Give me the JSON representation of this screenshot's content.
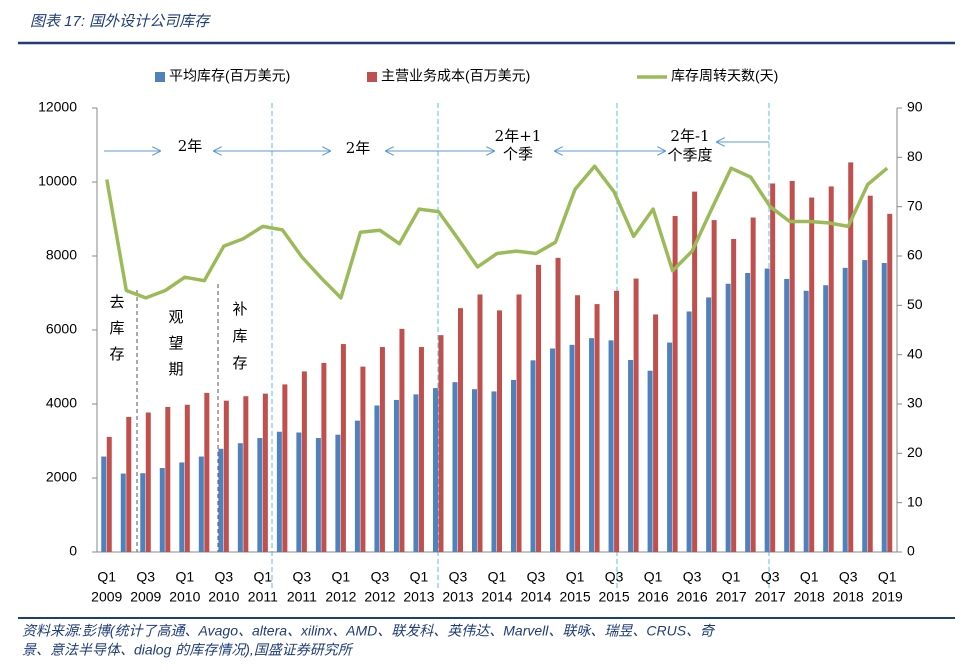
{
  "header": {
    "title": "图表 17: 国外设计公司库存"
  },
  "chart_data": {
    "type": "bar-line",
    "categories": [
      [
        "Q1",
        "2009"
      ],
      null,
      [
        "Q3",
        "2009"
      ],
      null,
      [
        "Q1",
        "2010"
      ],
      null,
      [
        "Q3",
        "2010"
      ],
      null,
      [
        "Q1",
        "2011"
      ],
      null,
      [
        "Q3",
        "2011"
      ],
      null,
      [
        "Q1",
        "2012"
      ],
      null,
      [
        "Q3",
        "2012"
      ],
      null,
      [
        "Q1",
        "2013"
      ],
      null,
      [
        "Q3",
        "2013"
      ],
      null,
      [
        "Q1",
        "2014"
      ],
      null,
      [
        "Q3",
        "2014"
      ],
      null,
      [
        "Q1",
        "2015"
      ],
      null,
      [
        "Q3",
        "2015"
      ],
      null,
      [
        "Q1",
        "2016"
      ],
      null,
      [
        "Q3",
        "2016"
      ],
      null,
      [
        "Q1",
        "2017"
      ],
      null,
      [
        "Q3",
        "2017"
      ],
      null,
      [
        "Q1",
        "2018"
      ],
      null,
      [
        "Q3",
        "2018"
      ],
      null,
      [
        "Q1",
        "2019"
      ]
    ],
    "series": [
      {
        "name": "平均库存(百万美元)",
        "color": "#4f81bd",
        "type": "bar",
        "values": [
          2580,
          2120,
          2130,
          2270,
          2420,
          2580,
          2790,
          2940,
          3080,
          3250,
          3230,
          3080,
          3170,
          3550,
          3960,
          4110,
          4260,
          4430,
          4590,
          4400,
          4340,
          4650,
          5180,
          5500,
          5600,
          5780,
          5720,
          5190,
          4900,
          5660,
          6500,
          6880,
          7250,
          7540,
          7660,
          7380,
          7060,
          7210,
          7680,
          7890,
          7810
        ]
      },
      {
        "name": "主营业务成本(百万美元)",
        "color": "#c0504d",
        "type": "bar",
        "values": [
          3110,
          3650,
          3770,
          3920,
          3980,
          4300,
          4090,
          4210,
          4280,
          4530,
          4880,
          5110,
          5620,
          5010,
          5540,
          6030,
          5540,
          5860,
          6590,
          6960,
          6530,
          6960,
          7760,
          7950,
          6940,
          6700,
          7060,
          7390,
          6420,
          9080,
          9740,
          8970,
          8460,
          9040,
          9960,
          10030,
          9580,
          9880,
          10530,
          9630,
          9140
        ]
      },
      {
        "name": "库存周转天数(天)",
        "color": "#9bbb59",
        "type": "line",
        "axis": "y2",
        "values": [
          75.5,
          53,
          51.5,
          53,
          55.7,
          55,
          62,
          63.5,
          66,
          65.3,
          59.8,
          55.5,
          51.5,
          64.8,
          65.2,
          62.5,
          69.5,
          69,
          63.5,
          57.8,
          60.5,
          61,
          60.5,
          62.8,
          73.5,
          78.2,
          73,
          64,
          69.5,
          57,
          61,
          69.5,
          77.8,
          76,
          70,
          67,
          67,
          66.7,
          66,
          74.5,
          77.8
        ]
      }
    ],
    "ylim": [
      0,
      12000
    ],
    "yticks": [
      0,
      2000,
      4000,
      6000,
      8000,
      10000,
      12000
    ],
    "y2lim": [
      0,
      90
    ],
    "y2ticks": [
      0,
      10,
      20,
      30,
      40,
      50,
      60,
      70,
      80,
      90
    ],
    "legend": "top",
    "grid": false,
    "annotations": [
      [
        "2年"
      ],
      [
        "2年"
      ],
      [
        "2年+1",
        "个季"
      ],
      [
        "2年-1",
        "个季度"
      ],
      [
        "去",
        "库",
        "存"
      ],
      [
        "观",
        "望",
        "期"
      ],
      [
        "补",
        "库",
        "存"
      ]
    ]
  },
  "source": [
    "资料来源:彭博(统计了高通、Avago、altera、xilinx、AMD、联发科、英伟达、Marvell、联咏、瑞昱、CRUS、奇",
    "景、意法半导体、dialog 的库存情况),国盛证券研究所"
  ]
}
